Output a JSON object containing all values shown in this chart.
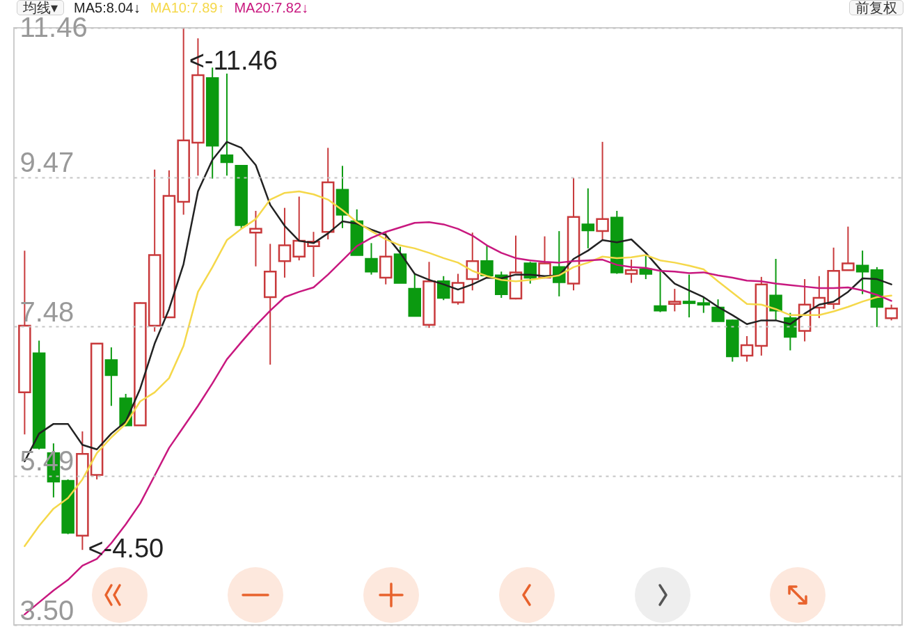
{
  "chart_data": {
    "type": "candlestick",
    "categories": [
      null,
      null,
      null,
      null,
      null,
      null,
      null,
      null,
      null,
      null,
      null,
      null,
      null,
      null,
      null,
      null,
      null,
      null,
      null,
      null,
      null,
      null,
      null,
      null,
      null,
      null,
      null,
      null,
      null,
      null,
      null,
      null,
      null,
      null,
      null,
      null,
      null,
      null,
      null,
      null,
      null,
      null,
      null,
      null,
      null,
      null,
      null,
      null,
      null,
      null,
      null,
      null,
      null,
      null,
      null,
      null,
      null,
      null,
      null,
      null,
      null
    ],
    "ohlc": [
      [
        6.6,
        8.49,
        6.04,
        7.49
      ],
      [
        7.12,
        7.29,
        5.84,
        5.86
      ],
      [
        5.79,
        5.92,
        5.2,
        5.41
      ],
      [
        5.42,
        5.44,
        4.71,
        4.73
      ],
      [
        4.69,
        6.08,
        4.5,
        5.78
      ],
      [
        5.5,
        7.25,
        5.44,
        7.25
      ],
      [
        7.03,
        7.2,
        6.42,
        6.83
      ],
      [
        6.52,
        6.58,
        6.15,
        6.16
      ],
      [
        6.16,
        7.8,
        6.16,
        7.79
      ],
      [
        7.49,
        9.57,
        7.41,
        8.43
      ],
      [
        7.6,
        9.56,
        7.6,
        9.22
      ],
      [
        9.14,
        11.46,
        8.97,
        9.96
      ],
      [
        9.93,
        11.32,
        9.49,
        10.83
      ],
      [
        10.79,
        10.93,
        9.45,
        9.89
      ],
      [
        9.76,
        10.85,
        9.49,
        9.67
      ],
      [
        9.62,
        9.63,
        8.78,
        8.83
      ],
      [
        8.73,
        9.02,
        8.28,
        8.78
      ],
      [
        7.87,
        8.58,
        6.97,
        8.21
      ],
      [
        8.35,
        9.06,
        8.13,
        8.56
      ],
      [
        8.41,
        9.21,
        8.36,
        8.62
      ],
      [
        8.55,
        8.74,
        8.14,
        8.61
      ],
      [
        8.74,
        9.86,
        8.64,
        9.4
      ],
      [
        9.3,
        9.62,
        8.79,
        8.97
      ],
      [
        8.88,
        9.04,
        8.43,
        8.43
      ],
      [
        8.38,
        8.59,
        8.17,
        8.21
      ],
      [
        8.13,
        8.74,
        8.04,
        8.41
      ],
      [
        8.44,
        8.54,
        8.06,
        8.06
      ],
      [
        7.98,
        8.19,
        7.61,
        7.62
      ],
      [
        7.5,
        8.34,
        7.46,
        8.08
      ],
      [
        8.08,
        8.15,
        7.83,
        7.86
      ],
      [
        7.8,
        8.18,
        7.77,
        8.06
      ],
      [
        8.11,
        8.73,
        7.96,
        8.35
      ],
      [
        8.35,
        8.56,
        8.16,
        8.16
      ],
      [
        8.16,
        8.21,
        7.86,
        7.91
      ],
      [
        7.85,
        8.69,
        7.84,
        8.2
      ],
      [
        8.32,
        8.34,
        8.05,
        8.13
      ],
      [
        8.13,
        8.68,
        8.13,
        8.32
      ],
      [
        8.27,
        8.75,
        7.88,
        8.07
      ],
      [
        8.05,
        9.46,
        7.96,
        8.94
      ],
      [
        8.84,
        9.32,
        8.52,
        8.76
      ],
      [
        8.75,
        9.94,
        8.64,
        8.91
      ],
      [
        8.93,
        9.02,
        8.18,
        8.2
      ],
      [
        8.18,
        8.37,
        8.06,
        8.23
      ],
      [
        8.24,
        8.43,
        8.11,
        8.18
      ],
      [
        7.75,
        8.21,
        7.67,
        7.69
      ],
      [
        7.78,
        7.98,
        7.68,
        7.81
      ],
      [
        7.81,
        8.17,
        7.6,
        7.79
      ],
      [
        7.79,
        7.87,
        7.66,
        7.77
      ],
      [
        7.73,
        7.84,
        7.55,
        7.55
      ],
      [
        7.56,
        7.57,
        7.01,
        7.08
      ],
      [
        7.09,
        7.35,
        7.01,
        7.23
      ],
      [
        7.22,
        8.14,
        7.09,
        8.04
      ],
      [
        7.89,
        8.38,
        7.56,
        7.69
      ],
      [
        7.59,
        7.66,
        7.16,
        7.34
      ],
      [
        7.42,
        8.11,
        7.28,
        7.77
      ],
      [
        7.73,
        8.15,
        7.59,
        7.86
      ],
      [
        7.78,
        8.53,
        7.71,
        8.22
      ],
      [
        8.23,
        8.81,
        8.23,
        8.32
      ],
      [
        8.29,
        8.49,
        7.91,
        8.21
      ],
      [
        8.23,
        8.27,
        7.47,
        7.74
      ],
      [
        7.59,
        7.77,
        7.56,
        7.72
      ]
    ],
    "colors": [
      "#c8393b",
      "#0b9a10",
      "#0b9a10",
      "#0b9a10",
      "#c8393b",
      "#c8393b",
      "#0b9a10",
      "#0b9a10",
      "#c8393b",
      "#c8393b",
      "#c8393b",
      "#c8393b",
      "#c8393b",
      "#0b9a10",
      "#0b9a10",
      "#0b9a10",
      "#c8393b",
      "#c8393b",
      "#c8393b",
      "#c8393b",
      "#c8393b",
      "#c8393b",
      "#0b9a10",
      "#0b9a10",
      "#0b9a10",
      "#c8393b",
      "#0b9a10",
      "#0b9a10",
      "#c8393b",
      "#0b9a10",
      "#c8393b",
      "#c8393b",
      "#0b9a10",
      "#0b9a10",
      "#c8393b",
      "#0b9a10",
      "#c8393b",
      "#0b9a10",
      "#c8393b",
      "#0b9a10",
      "#c8393b",
      "#0b9a10",
      "#c8393b",
      "#0b9a10",
      "#0b9a10",
      "#c8393b",
      "#0b9a10",
      "#0b9a10",
      "#0b9a10",
      "#0b9a10",
      "#c8393b",
      "#c8393b",
      "#0b9a10",
      "#0b9a10",
      "#c8393b",
      "#c8393b",
      "#c8393b",
      "#c8393b",
      "#0b9a10",
      "#0b9a10",
      "#c8393b"
    ],
    "series": [
      {
        "name": "MA5:8.04↓",
        "type": "line",
        "color": "#222222",
        "values": [
          5.68,
          6.05,
          6.18,
          6.18,
          5.9,
          5.84,
          6.05,
          6.21,
          6.65,
          7.25,
          7.71,
          8.31,
          9.28,
          9.7,
          9.94,
          9.86,
          9.63,
          9.1,
          8.82,
          8.62,
          8.59,
          8.72,
          8.88,
          8.85,
          8.77,
          8.7,
          8.46,
          8.18,
          8.1,
          8.04,
          7.97,
          8.04,
          8.13,
          8.12,
          8.17,
          8.17,
          8.15,
          8.16,
          8.38,
          8.49,
          8.63,
          8.6,
          8.64,
          8.46,
          8.24,
          8.05,
          7.96,
          7.87,
          7.74,
          7.63,
          7.51,
          7.56,
          7.56,
          7.51,
          7.65,
          7.77,
          7.81,
          7.94,
          8.12,
          8.11,
          8.04
        ]
      },
      {
        "name": "MA10:7.89↑",
        "type": "line",
        "color": "#f5d84a",
        "values": [
          4.55,
          4.82,
          5.05,
          5.19,
          5.44,
          5.79,
          6.0,
          6.18,
          6.48,
          6.6,
          6.79,
          7.22,
          7.94,
          8.27,
          8.63,
          8.78,
          8.91,
          9.17,
          9.26,
          9.28,
          9.24,
          9.17,
          9.03,
          8.87,
          8.75,
          8.64,
          8.56,
          8.52,
          8.46,
          8.39,
          8.33,
          8.22,
          8.15,
          8.1,
          8.08,
          8.1,
          8.13,
          8.16,
          8.27,
          8.33,
          8.41,
          8.39,
          8.4,
          8.43,
          8.36,
          8.33,
          8.29,
          8.24,
          8.08,
          7.93,
          7.78,
          7.77,
          7.71,
          7.63,
          7.63,
          7.63,
          7.68,
          7.74,
          7.81,
          7.87,
          7.89
        ]
      },
      {
        "name": "MA20:7.82↓",
        "type": "line",
        "color": "#c8187f",
        "values": [
          3.64,
          3.8,
          3.96,
          4.1,
          4.29,
          4.38,
          4.59,
          4.84,
          5.12,
          5.49,
          5.86,
          6.14,
          6.42,
          6.72,
          7.04,
          7.27,
          7.49,
          7.69,
          7.87,
          7.94,
          8.0,
          8.17,
          8.36,
          8.55,
          8.66,
          8.74,
          8.8,
          8.86,
          8.87,
          8.84,
          8.78,
          8.69,
          8.56,
          8.46,
          8.39,
          8.36,
          8.34,
          8.33,
          8.35,
          8.36,
          8.37,
          8.3,
          8.27,
          8.26,
          8.22,
          8.21,
          8.19,
          8.2,
          8.16,
          8.13,
          8.09,
          8.08,
          8.05,
          8.03,
          8.01,
          7.99,
          7.99,
          8.0,
          7.96,
          7.9,
          7.82
        ]
      }
    ],
    "ylim": [
      3.5,
      11.46
    ],
    "yticks": [
      11.46,
      9.47,
      7.48,
      5.49,
      {
        "value": 3.5,
        "label": "3.50"
      }
    ],
    "grid": "y",
    "legend": "top",
    "annotations": [
      "均线▾",
      "前复权",
      "<-11.46",
      "<-4.50"
    ]
  }
}
